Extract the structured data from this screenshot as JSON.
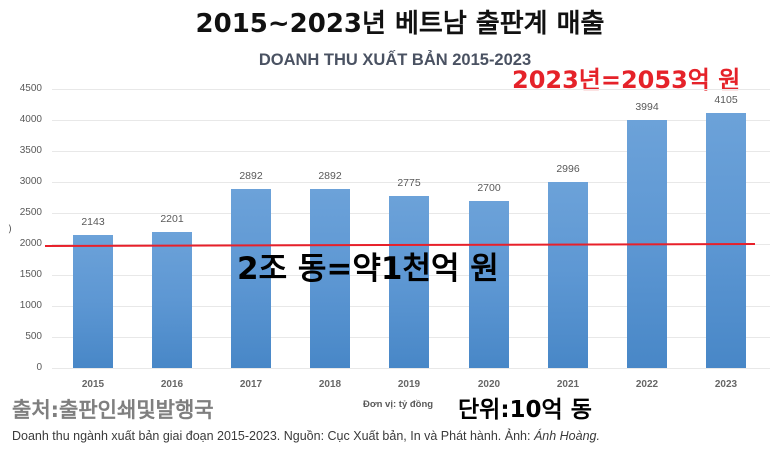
{
  "title": "2015~2023년 베트남 출판계 매출",
  "chart_title": "DOANH THU XUẤT BẢN 2015-2023",
  "annotations": {
    "total_2023": "2023년=2053억 원",
    "conversion": "2조 동=약1천억 원",
    "unit_ko": "단위:10억 동"
  },
  "source_ko": "출처:출판인쇄및발행국",
  "unit_vi": "Đơn vị: tỷ đồng",
  "axis_fragment": ")",
  "caption": {
    "text": "Doanh thu ngành xuất bản giai đoạn 2015-2023. Nguồn: Cục Xuất bản, In và Phát hành. Ảnh: ",
    "credit": "Ánh Hoàng."
  },
  "colors": {
    "bar": "#5b9bd5",
    "reference_line": "#e8202a",
    "annotation_red": "#e52229",
    "chart_title": "#4a5262",
    "source_gray": "#7f7f7f"
  },
  "chart_data": {
    "type": "bar",
    "title": "DOANH THU XUẤT BẢN 2015-2023",
    "xlabel": "Đơn vị: tỷ đồng",
    "ylabel": "",
    "categories": [
      "2015",
      "2016",
      "2017",
      "2018",
      "2019",
      "2020",
      "2021",
      "2022",
      "2023"
    ],
    "values": [
      2143,
      2201,
      2892,
      2892,
      2775,
      2700,
      2996,
      3994,
      4105
    ],
    "data_labels": [
      "2143",
      "2201",
      "2892",
      "2892",
      "2775",
      "2700",
      "2996",
      "3994",
      "4105"
    ],
    "ylim": [
      0,
      4500
    ],
    "yticks": [
      0,
      500,
      1000,
      1500,
      2000,
      2500,
      3000,
      3500,
      4000,
      4500
    ],
    "grid": true,
    "legend": "none",
    "reference_line": {
      "y": 2000,
      "label": "2조 동=약1천억 원"
    }
  }
}
